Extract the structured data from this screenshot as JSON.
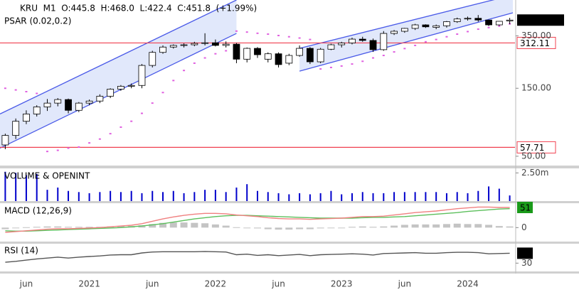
{
  "chart_data": [
    {
      "type": "candlestick",
      "title": "KRU  M1  O:445.8  H:468.0  L:422.4  C:451.8  (+1.99%)",
      "subtitle": "PSAR (0.02,0.2)",
      "categories": [
        null,
        null,
        "jun",
        null,
        null,
        null,
        null,
        null,
        "2021",
        null,
        null,
        null,
        null,
        null,
        "jun",
        null,
        null,
        null,
        null,
        null,
        "2022",
        null,
        null,
        null,
        null,
        null,
        "jun",
        null,
        null,
        null,
        null,
        null,
        "2023",
        null,
        null,
        null,
        null,
        null,
        "jun",
        null,
        null,
        null,
        null,
        null,
        "2024",
        null,
        null,
        null,
        null
      ],
      "open": [
        60,
        70,
        88,
        99,
        111,
        118,
        125,
        105,
        118,
        122,
        132,
        148,
        155,
        157,
        217,
        268,
        292,
        300,
        303,
        310,
        313,
        300,
        306,
        240,
        286,
        240,
        262,
        225,
        255,
        286,
        230,
        282,
        303,
        312,
        332,
        325,
        280,
        364,
        377,
        395,
        418,
        402,
        412,
        440,
        460,
        465,
        452,
        418,
        445.8
      ],
      "high": [
        72,
        92,
        105,
        114,
        126,
        128,
        127,
        120,
        125,
        136,
        150,
        158,
        162,
        222,
        275,
        300,
        305,
        310,
        318,
        365,
        330,
        320,
        312,
        290,
        292,
        268,
        268,
        262,
        300,
        292,
        288,
        308,
        318,
        340,
        345,
        335,
        378,
        385,
        398,
        425,
        422,
        420,
        445,
        470,
        478,
        490,
        455,
        445,
        468.0
      ],
      "low": [
        56,
        66,
        84,
        95,
        104,
        112,
        100,
        102,
        114,
        118,
        128,
        144,
        150,
        150,
        210,
        262,
        285,
        290,
        296,
        300,
        295,
        290,
        225,
        228,
        245,
        228,
        210,
        218,
        250,
        222,
        225,
        278,
        290,
        305,
        318,
        270,
        275,
        355,
        368,
        385,
        398,
        390,
        400,
        432,
        448,
        440,
        410,
        412,
        422.4
      ],
      "close": [
        70,
        88,
        99,
        111,
        118,
        125,
        105,
        118,
        122,
        132,
        148,
        155,
        157,
        217,
        268,
        292,
        300,
        303,
        310,
        313,
        300,
        306,
        240,
        286,
        258,
        262,
        220,
        255,
        286,
        230,
        282,
        303,
        312,
        332,
        325,
        280,
        364,
        377,
        395,
        418,
        405,
        412,
        440,
        460,
        465,
        452,
        418,
        443,
        451.8
      ],
      "up_color": "#ffffff",
      "down_color": "#000000",
      "log_scale": true,
      "ylim": [
        43,
        625
      ],
      "yticks": [
        {
          "value": 350,
          "label": "350.00"
        },
        {
          "value": 150,
          "label": "150.00"
        },
        {
          "value": 50,
          "label": "50.00"
        }
      ],
      "last_label": "451.8000",
      "psar": [
        150,
        146,
        142,
        138,
        54,
        55,
        57,
        58,
        62,
        66,
        72,
        80,
        88,
        100,
        118,
        140,
        170,
        200,
        225,
        245,
        262,
        275,
        378,
        372,
        365,
        360,
        352,
        345,
        338,
        330,
        205,
        210,
        215,
        222,
        232,
        245,
        255,
        270,
        285,
        300,
        318,
        330,
        345,
        360,
        375,
        390,
        400,
        410,
        425
      ],
      "psar_color": "#e060e0",
      "channels": [
        {
          "x": [
            -0.5,
            22
          ],
          "upper": [
            99,
            625
          ],
          "lower": [
            57,
            364
          ]
        },
        {
          "x": [
            28,
            48.3
          ],
          "upper": [
            286,
            678
          ],
          "lower": [
            198,
            508
          ]
        }
      ],
      "channel_color": "#4a5ae8",
      "hlines": [
        312.11,
        57.71
      ],
      "hline_color": "#f04050"
    },
    {
      "type": "bar",
      "title": "VOLUME & OPENINT",
      "values": [
        2600000,
        2500000,
        2300000,
        2400000,
        1000000,
        1200000,
        900000,
        800000,
        700000,
        800000,
        900000,
        800000,
        900000,
        700000,
        900000,
        800000,
        900000,
        700000,
        800000,
        1000000,
        1000000,
        800000,
        1200000,
        1500000,
        900000,
        800000,
        700000,
        600000,
        700000,
        600000,
        700000,
        900000,
        600000,
        700000,
        800000,
        700000,
        700000,
        800000,
        800000,
        800000,
        800000,
        800000,
        700000,
        800000,
        700000,
        900000,
        1300000,
        1100000,
        500000
      ],
      "color": "#0000cc",
      "ylim": [
        0,
        2900000
      ],
      "yticks": [
        {
          "value": 2500000,
          "label": "2.50m"
        }
      ]
    },
    {
      "type": "macd",
      "title": "MACD (12,26,9)",
      "macd": [
        -12,
        -10,
        -8,
        -6,
        -4,
        -3,
        -3,
        -2,
        -1,
        0,
        2,
        4,
        6,
        10,
        16,
        22,
        27,
        31,
        34,
        36,
        36,
        35,
        32,
        30,
        28,
        25,
        23,
        22,
        22,
        21,
        22,
        23,
        24,
        26,
        28,
        28,
        29,
        32,
        35,
        38,
        40,
        42,
        45,
        48,
        50,
        52,
        52,
        51,
        51
      ],
      "signal": [
        -8,
        -9,
        -9,
        -8,
        -7,
        -6,
        -5,
        -4,
        -3,
        -2,
        -1,
        0,
        2,
        4,
        7,
        10,
        14,
        18,
        22,
        25,
        28,
        30,
        31,
        31,
        30,
        29,
        28,
        27,
        26,
        25,
        24,
        24,
        24,
        24,
        25,
        26,
        26,
        27,
        28,
        30,
        32,
        34,
        36,
        38,
        41,
        43,
        45,
        47,
        48
      ],
      "histogram": [
        -4,
        -1,
        1,
        2,
        3,
        3,
        2,
        2,
        2,
        2,
        3,
        4,
        4,
        6,
        9,
        12,
        13,
        13,
        12,
        11,
        8,
        5,
        1,
        -1,
        -2,
        -4,
        -5,
        -5,
        -4,
        -4,
        -2,
        -1,
        0,
        2,
        3,
        2,
        3,
        5,
        7,
        8,
        8,
        8,
        9,
        10,
        9,
        9,
        7,
        4,
        3
      ],
      "macd_color": "#f08080",
      "signal_color": "#5cbf5c",
      "histogram_color": "#c4c4c4",
      "label_color": "#1a9a1a",
      "ylim": [
        -30,
        60
      ],
      "yticks": [
        0
      ]
    },
    {
      "type": "line",
      "title": "RSI (14)",
      "values": [
        33,
        36,
        40,
        44,
        47,
        50,
        47,
        50,
        52,
        54,
        57,
        58,
        58,
        64,
        67,
        68,
        68,
        68,
        68,
        69,
        68,
        67,
        58,
        60,
        56,
        58,
        55,
        57,
        59,
        55,
        58,
        59,
        60,
        61,
        60,
        57,
        62,
        63,
        64,
        65,
        63,
        63,
        65,
        66,
        66,
        65,
        61,
        62,
        63
      ],
      "color": "#555555",
      "ylim": [
        0,
        90
      ],
      "yticks": [
        30
      ]
    }
  ]
}
